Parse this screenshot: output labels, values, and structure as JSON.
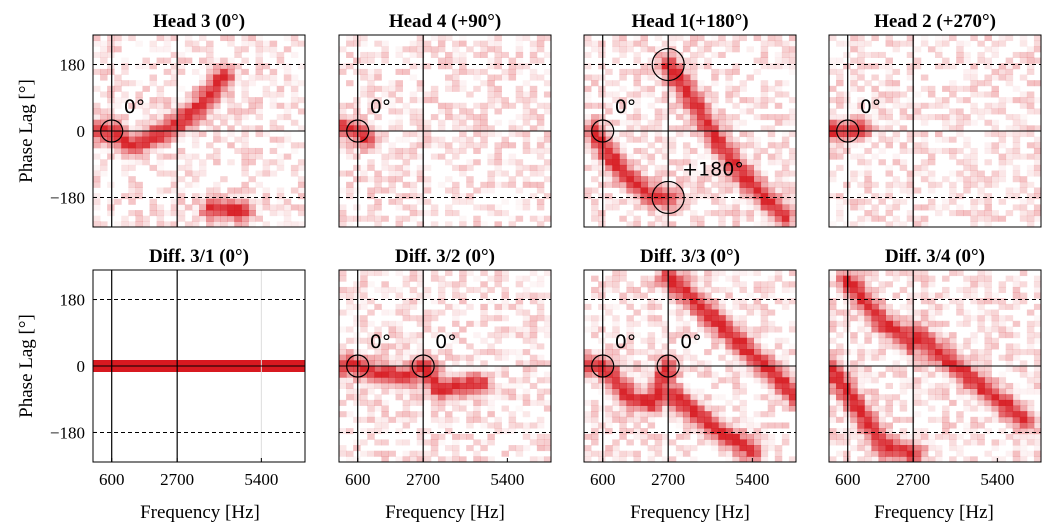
{
  "figure": {
    "ylabel": "Phase Lag [°]",
    "xlabel": "Frequency [Hz]",
    "x_tick_labels": [
      "600",
      "2700",
      "5400"
    ],
    "y_tick_labels": [
      "180",
      "0",
      "−180"
    ],
    "accent_color": "#d71920"
  },
  "chart_data": [
    {
      "type": "heatmap",
      "title": "Head 3 (0°)",
      "xlim": [
        0,
        6800
      ],
      "ylim": [
        -260,
        260
      ],
      "xticks": [
        600,
        2700,
        5400
      ],
      "yticks": [
        180,
        0,
        -180
      ],
      "ridges": [
        {
          "points": [
            [
              0,
              0
            ],
            [
              600,
              0
            ],
            [
              1200,
              -40
            ],
            [
              1800,
              -20
            ],
            [
              2700,
              20
            ],
            [
              3500,
              70
            ],
            [
              4200,
              150
            ]
          ]
        },
        {
          "points": [
            [
              3800,
              -210
            ],
            [
              4800,
              -215
            ]
          ]
        }
      ],
      "annotations": [
        {
          "text": "0°",
          "x": 600,
          "y": 0
        }
      ]
    },
    {
      "type": "heatmap",
      "title": "Head 4 (+90°)",
      "xlim": [
        0,
        6800
      ],
      "ylim": [
        -260,
        260
      ],
      "xticks": [
        600,
        2700,
        5400
      ],
      "yticks": [
        180,
        0,
        -180
      ],
      "ridges": [
        {
          "points": [
            [
              0,
              10
            ],
            [
              600,
              0
            ],
            [
              900,
              -20
            ]
          ]
        }
      ],
      "annotations": [
        {
          "text": "0°",
          "x": 600,
          "y": 0
        }
      ]
    },
    {
      "type": "heatmap",
      "title": "Head 1(+180°)",
      "xlim": [
        0,
        6800
      ],
      "ylim": [
        -260,
        260
      ],
      "xticks": [
        600,
        2700,
        5400
      ],
      "yticks": [
        180,
        0,
        -180
      ],
      "ridges": [
        {
          "points": [
            [
              2700,
              180
            ],
            [
              3500,
              80
            ],
            [
              4300,
              -30
            ],
            [
              5200,
              -130
            ],
            [
              6400,
              -230
            ]
          ]
        },
        {
          "points": [
            [
              300,
              0
            ],
            [
              1200,
              -110
            ],
            [
              2200,
              -180
            ],
            [
              2700,
              -180
            ]
          ]
        }
      ],
      "annotations": [
        {
          "text": "0°",
          "x": 600,
          "y": 0
        },
        {
          "text": "+180°",
          "x": 2700,
          "y": -180
        }
      ]
    },
    {
      "type": "heatmap",
      "title": "Head 2 (+270°)",
      "xlim": [
        0,
        6800
      ],
      "ylim": [
        -260,
        260
      ],
      "xticks": [
        600,
        2700,
        5400
      ],
      "yticks": [
        180,
        0,
        -180
      ],
      "ridges": [
        {
          "points": [
            [
              0,
              0
            ],
            [
              600,
              0
            ],
            [
              1000,
              10
            ]
          ]
        }
      ],
      "annotations": [
        {
          "text": "0°",
          "x": 600,
          "y": 0
        }
      ]
    },
    {
      "type": "heatmap",
      "title": "Diff. 3/1 (0°)",
      "xlim": [
        0,
        6800
      ],
      "ylim": [
        -260,
        260
      ],
      "xticks": [
        600,
        2700,
        5400
      ],
      "yticks": [
        180,
        0,
        -180
      ],
      "band": {
        "y": 0
      },
      "annotations": []
    },
    {
      "type": "heatmap",
      "title": "Diff. 3/2 (0°)",
      "xlim": [
        0,
        6800
      ],
      "ylim": [
        -260,
        260
      ],
      "xticks": [
        600,
        2700,
        5400
      ],
      "yticks": [
        180,
        0,
        -180
      ],
      "ridges": [
        {
          "points": [
            [
              0,
              0
            ],
            [
              600,
              0
            ],
            [
              1200,
              -20
            ],
            [
              2200,
              -30
            ],
            [
              2700,
              0
            ],
            [
              3200,
              -60
            ],
            [
              4500,
              -50
            ]
          ]
        }
      ],
      "annotations": [
        {
          "text": "0°",
          "x": 600,
          "y": 0
        },
        {
          "text": "0°",
          "x": 2700,
          "y": 0
        }
      ]
    },
    {
      "type": "heatmap",
      "title": "Diff. 3/3 (0°)",
      "xlim": [
        0,
        6800
      ],
      "ylim": [
        -260,
        260
      ],
      "xticks": [
        600,
        2700,
        5400
      ],
      "yticks": [
        180,
        0,
        -180
      ],
      "ridges": [
        {
          "points": [
            [
              0,
              0
            ],
            [
              600,
              0
            ],
            [
              1500,
              -90
            ],
            [
              2200,
              -100
            ],
            [
              2700,
              0
            ]
          ]
        },
        {
          "points": [
            [
              2700,
              -70
            ],
            [
              4200,
              -170
            ],
            [
              5400,
              -230
            ]
          ]
        },
        {
          "points": [
            [
              2700,
              240
            ],
            [
              4300,
              120
            ],
            [
              5500,
              20
            ],
            [
              6800,
              -80
            ]
          ]
        }
      ],
      "annotations": [
        {
          "text": "0°",
          "x": 600,
          "y": 0
        },
        {
          "text": "0°",
          "x": 2700,
          "y": 0
        }
      ]
    },
    {
      "type": "heatmap",
      "title": "Diff. 3/4 (0°)",
      "xlim": [
        0,
        6800
      ],
      "ylim": [
        -260,
        260
      ],
      "xticks": [
        600,
        2700,
        5400
      ],
      "yticks": [
        180,
        0,
        -180
      ],
      "ridges": [
        {
          "points": [
            [
              600,
              230
            ],
            [
              1700,
              120
            ],
            [
              2700,
              60
            ]
          ]
        },
        {
          "points": [
            [
              2700,
              90
            ],
            [
              4500,
              -30
            ],
            [
              6300,
              -150
            ]
          ]
        },
        {
          "points": [
            [
              0,
              0
            ],
            [
              800,
              -100
            ],
            [
              1800,
              -220
            ],
            [
              2700,
              -235
            ]
          ]
        }
      ],
      "annotations": []
    }
  ]
}
